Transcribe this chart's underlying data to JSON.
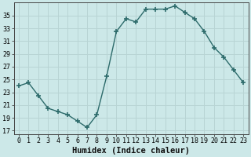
{
  "x": [
    0,
    1,
    2,
    3,
    4,
    5,
    6,
    7,
    8,
    9,
    10,
    11,
    12,
    13,
    14,
    15,
    16,
    17,
    18,
    19,
    20,
    21,
    22,
    23
  ],
  "y": [
    24,
    24.5,
    22.5,
    20.5,
    20,
    19.5,
    18.5,
    17.5,
    19.5,
    25.5,
    32.5,
    34.5,
    34,
    36,
    36,
    36,
    36.5,
    35.5,
    34.5,
    32.5,
    30,
    28.5,
    26.5,
    24.5
  ],
  "line_color": "#2d6b6b",
  "marker": "+",
  "marker_size": 4,
  "marker_lw": 1.2,
  "bg_color": "#cce8e8",
  "grid_color": "#b8d4d4",
  "xlabel": "Humidex (Indice chaleur)",
  "xlim": [
    -0.5,
    23.5
  ],
  "ylim": [
    16.5,
    37
  ],
  "yticks": [
    17,
    19,
    21,
    23,
    25,
    27,
    29,
    31,
    33,
    35
  ],
  "xticks": [
    0,
    1,
    2,
    3,
    4,
    5,
    6,
    7,
    8,
    9,
    10,
    11,
    12,
    13,
    14,
    15,
    16,
    17,
    18,
    19,
    20,
    21,
    22,
    23
  ],
  "tick_labelsize": 6,
  "xlabel_fontsize": 7.5,
  "line_width": 1.0
}
